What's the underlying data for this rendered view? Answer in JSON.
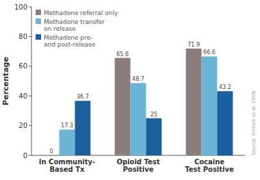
{
  "chart_data": {
    "type": "bar",
    "categories": [
      "In Community-\nBased Tx",
      "Opioid Test\nPositive",
      "Cocaine\nTest Positive"
    ],
    "series": [
      {
        "name": "Methadone referral only",
        "values": [
          0,
          65.6,
          71.9
        ],
        "color": "#8b7d7b"
      },
      {
        "name": "Methadone transfer\non release",
        "values": [
          17.3,
          48.7,
          66.6
        ],
        "color": "#6ab4d8"
      },
      {
        "name": "Methadone pre-\nand post-release",
        "values": [
          36.7,
          25,
          43.2
        ],
        "color": "#1a5f9e"
      }
    ],
    "y_label": "Percentage",
    "ylim": [
      0,
      100
    ],
    "yticks": [
      0,
      20,
      40,
      60,
      80,
      100
    ],
    "data_labels": true,
    "legend": "upper left",
    "grid": false,
    "annotations": [
      "Source: Kinlock et al. 2009."
    ]
  }
}
